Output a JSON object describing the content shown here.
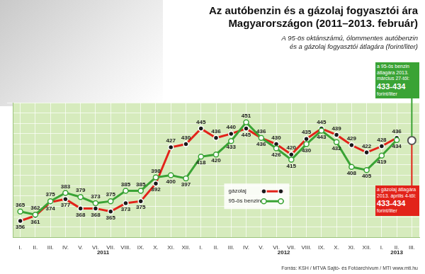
{
  "chart_data": {
    "type": "line",
    "title": [
      "Az autóbenzin és a gázolaj fogyasztói ára",
      "Magyarországon (2011–2013. február)"
    ],
    "subtitle": [
      "A 95-ös oktánszámú, ólommentes autóbenzin",
      "és a gázolaj fogyasztói átlagára (forint/liter)"
    ],
    "categories": [
      "I.",
      "II.",
      "III.",
      "IV.",
      "V.",
      "VI.",
      "VII.",
      "VIII.",
      "IX.",
      "X.",
      "XI.",
      "XII.",
      "I.",
      "II.",
      "III.",
      "IV.",
      "V.",
      "VI.",
      "VII.",
      "VIII.",
      "IX.",
      "X.",
      "XI.",
      "XII.",
      "I.",
      "II.",
      "III."
    ],
    "year_groups": [
      {
        "label": "2011",
        "count": 12
      },
      {
        "label": "2012",
        "count": 12
      },
      {
        "label": "2013",
        "count": 3
      }
    ],
    "series": [
      {
        "name": "gázolaj",
        "color": "#e2231a",
        "marker": "circle",
        "line_style": "solid",
        "values": [
          356,
          361,
          374,
          377,
          368,
          368,
          365,
          373,
          375,
          392,
          427,
          430,
          445,
          436,
          440,
          445,
          436,
          430,
          420,
          435,
          445,
          439,
          429,
          422,
          428,
          436,
          null
        ]
      },
      {
        "name": "95-ös benzin",
        "color": "#3aa335",
        "marker": "circle",
        "line_style": "solid",
        "values": [
          365,
          362,
          375,
          383,
          379,
          373,
          375,
          385,
          385,
          398,
          400,
          397,
          418,
          420,
          433,
          451,
          436,
          426,
          415,
          430,
          443,
          432,
          408,
          405,
          419,
          434,
          null
        ]
      }
    ],
    "estimate_point": {
      "category_index": 26,
      "value": 433.5
    },
    "annotations": [
      {
        "text": "a 95-ös benzin átlagára 2013. március 27-től:",
        "value_text": "433-434",
        "unit": "forint/liter",
        "color": "#3aa335"
      },
      {
        "text": "a gázolaj átlagára 2013. április 4-től:",
        "value_text": "433-434",
        "unit": "forint/liter",
        "color": "#e2231a"
      }
    ],
    "ylim": [
      340,
      470
    ],
    "yticks": [
      340,
      350,
      360,
      370,
      380,
      390,
      400,
      410,
      420,
      430,
      440,
      450,
      460,
      470
    ],
    "grid": true,
    "tick_labels": "x",
    "data_labels": true,
    "legend": "center",
    "source": "Forrás: KSH / MTVA Sajtó- és Fotóarchívum / MTI",
    "website": "www.mti.hu"
  }
}
